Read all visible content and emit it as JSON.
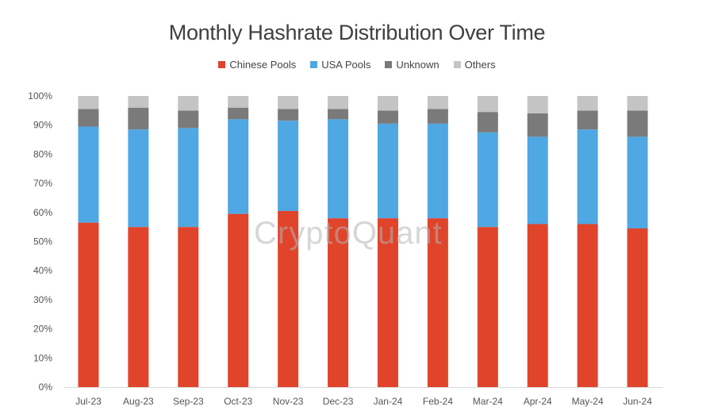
{
  "title": "Monthly Hashrate Distribution Over Time",
  "watermark": "CryptoQuant",
  "legend": [
    {
      "name": "Chinese Pools",
      "color": "#e0442b"
    },
    {
      "name": "USA Pools",
      "color": "#4fa7e3"
    },
    {
      "name": "Unknown",
      "color": "#7a7a7a"
    },
    {
      "name": "Others",
      "color": "#c4c4c4"
    }
  ],
  "chart_data": {
    "type": "bar",
    "stacked": true,
    "title": "Monthly Hashrate Distribution Over Time",
    "xlabel": "",
    "ylabel": "",
    "ylim": [
      0,
      100
    ],
    "y_ticks": [
      "0%",
      "10%",
      "20%",
      "30%",
      "40%",
      "50%",
      "60%",
      "70%",
      "80%",
      "90%",
      "100%"
    ],
    "grid": false,
    "legend_position": "top-center",
    "categories": [
      "Jul-23",
      "Aug-23",
      "Sep-23",
      "Oct-23",
      "Nov-23",
      "Dec-23",
      "Jan-24",
      "Feb-24",
      "Mar-24",
      "Apr-24",
      "May-24",
      "Jun-24"
    ],
    "series": [
      {
        "name": "Chinese Pools",
        "color": "#e0442b",
        "values": [
          56.5,
          55,
          55,
          59.5,
          60.5,
          58,
          58,
          58,
          55,
          56,
          56,
          54.5
        ]
      },
      {
        "name": "USA Pools",
        "color": "#4fa7e3",
        "values": [
          33,
          33.5,
          34,
          32.5,
          31,
          34,
          32.5,
          32.5,
          32.5,
          30,
          32.5,
          31.5
        ]
      },
      {
        "name": "Unknown",
        "color": "#7a7a7a",
        "values": [
          6,
          7.5,
          6,
          4,
          4,
          3.5,
          4.5,
          5,
          7,
          8,
          6.5,
          9
        ]
      },
      {
        "name": "Others",
        "color": "#c4c4c4",
        "values": [
          4.5,
          4,
          5,
          4,
          4.5,
          4.5,
          5,
          4.5,
          5.5,
          6,
          5,
          5
        ]
      }
    ]
  }
}
